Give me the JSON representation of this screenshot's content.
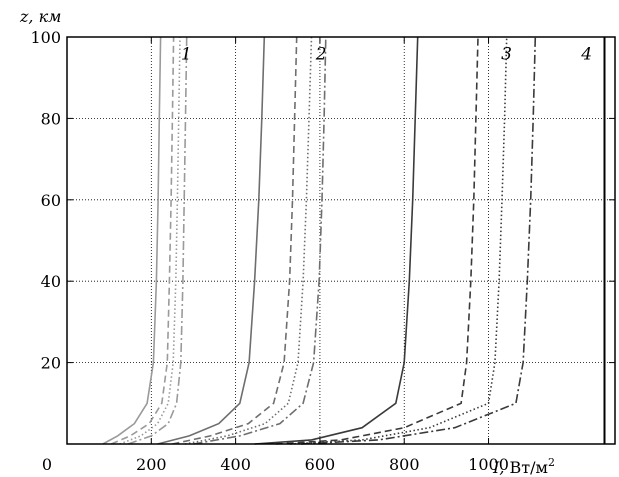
{
  "chart_data": {
    "type": "line",
    "ylabel": "z, км",
    "xlabel_symbol": "I,",
    "xlabel_unit": "Вт/м",
    "xlabel_unit_exp": "2",
    "xlim": [
      0,
      1300
    ],
    "ylim": [
      0,
      100
    ],
    "x_ticks": [
      0,
      200,
      400,
      600,
      800,
      1000
    ],
    "x_tick_labels": [
      "0",
      "200",
      "400",
      "600",
      "800",
      "1000"
    ],
    "y_ticks": [
      20,
      40,
      60,
      80,
      100
    ],
    "y_tick_labels": [
      "20",
      "40",
      "60",
      "80",
      "100"
    ],
    "grid": true,
    "series_labels": [
      {
        "text": "1",
        "x": 270,
        "y": 96
      },
      {
        "text": "2",
        "x": 590,
        "y": 96
      },
      {
        "text": "3",
        "x": 1030,
        "y": 96
      },
      {
        "text": "4",
        "x": 1220,
        "y": 96
      }
    ],
    "groups": [
      {
        "label": "1",
        "color": "#9a9a9a",
        "series": [
          {
            "style": "solid",
            "points": [
              [
                85,
                0
              ],
              [
                120,
                2
              ],
              [
                160,
                5
              ],
              [
                190,
                10
              ],
              [
                205,
                20
              ],
              [
                212,
                40
              ],
              [
                216,
                60
              ],
              [
                219,
                80
              ],
              [
                222,
                100
              ]
            ]
          },
          {
            "style": "dashed",
            "points": [
              [
                105,
                0
              ],
              [
                150,
                2
              ],
              [
                195,
                5
              ],
              [
                225,
                10
              ],
              [
                238,
                20
              ],
              [
                243,
                40
              ],
              [
                247,
                60
              ],
              [
                250,
                80
              ],
              [
                253,
                100
              ]
            ]
          },
          {
            "style": "dotted",
            "points": [
              [
                125,
                0
              ],
              [
                175,
                2
              ],
              [
                215,
                5
              ],
              [
                240,
                10
              ],
              [
                252,
                20
              ],
              [
                258,
                40
              ],
              [
                262,
                60
              ],
              [
                265,
                80
              ],
              [
                268,
                100
              ]
            ]
          },
          {
            "style": "dashdot",
            "points": [
              [
                145,
                0
              ],
              [
                200,
                2
              ],
              [
                240,
                5
              ],
              [
                260,
                10
              ],
              [
                270,
                20
              ],
              [
                275,
                40
              ],
              [
                278,
                60
              ],
              [
                281,
                80
              ],
              [
                284,
                100
              ]
            ]
          }
        ]
      },
      {
        "label": "2",
        "color": "#6e6e6e",
        "series": [
          {
            "style": "solid",
            "points": [
              [
                215,
                0
              ],
              [
                290,
                2
              ],
              [
                360,
                5
              ],
              [
                410,
                10
              ],
              [
                432,
                20
              ],
              [
                445,
                40
              ],
              [
                455,
                60
              ],
              [
                462,
                80
              ],
              [
                468,
                100
              ]
            ]
          },
          {
            "style": "dashed",
            "points": [
              [
                250,
                0
              ],
              [
                340,
                2
              ],
              [
                430,
                5
              ],
              [
                490,
                10
              ],
              [
                515,
                20
              ],
              [
                528,
                40
              ],
              [
                535,
                60
              ],
              [
                540,
                80
              ],
              [
                545,
                100
              ]
            ]
          },
          {
            "style": "dotted",
            "points": [
              [
                280,
                0
              ],
              [
                380,
                2
              ],
              [
                470,
                5
              ],
              [
                525,
                10
              ],
              [
                548,
                20
              ],
              [
                560,
                40
              ],
              [
                568,
                60
              ],
              [
                574,
                80
              ],
              [
                580,
                100
              ]
            ]
          },
          {
            "style": "dashdot",
            "points": [
              [
                300,
                0
              ],
              [
                410,
                2
              ],
              [
                505,
                5
              ],
              [
                560,
                10
              ],
              [
                585,
                20
              ],
              [
                598,
                40
              ],
              [
                605,
                60
              ],
              [
                610,
                80
              ],
              [
                614,
                100
              ]
            ]
          }
        ]
      },
      {
        "label": "3",
        "color": "#3a3a3a",
        "series": [
          {
            "style": "solid",
            "points": [
              [
                445,
                0
              ],
              [
                580,
                1
              ],
              [
                700,
                4
              ],
              [
                780,
                10
              ],
              [
                800,
                20
              ],
              [
                812,
                40
              ],
              [
                820,
                60
              ],
              [
                826,
                80
              ],
              [
                832,
                100
              ]
            ]
          },
          {
            "style": "dashed",
            "points": [
              [
                495,
                0
              ],
              [
                650,
                1
              ],
              [
                800,
                4
              ],
              [
                935,
                10
              ],
              [
                948,
                20
              ],
              [
                958,
                40
              ],
              [
                965,
                60
              ],
              [
                970,
                80
              ],
              [
                975,
                100
              ]
            ]
          },
          {
            "style": "dotted",
            "points": [
              [
                530,
                0
              ],
              [
                700,
                1
              ],
              [
                860,
                4
              ],
              [
                1000,
                10
              ],
              [
                1015,
                20
              ],
              [
                1025,
                40
              ],
              [
                1032,
                60
              ],
              [
                1038,
                80
              ],
              [
                1043,
                100
              ]
            ]
          },
          {
            "style": "dashdot",
            "points": [
              [
                555,
                0
              ],
              [
                740,
                1
              ],
              [
                920,
                4
              ],
              [
                1065,
                10
              ],
              [
                1082,
                20
              ],
              [
                1092,
                40
              ],
              [
                1100,
                60
              ],
              [
                1106,
                80
              ],
              [
                1111,
                100
              ]
            ]
          }
        ]
      },
      {
        "label": "4",
        "color": "#000000",
        "series": [
          {
            "style": "solid",
            "points": [
              [
                1275,
                0
              ],
              [
                1275,
                100
              ]
            ]
          }
        ]
      }
    ]
  }
}
